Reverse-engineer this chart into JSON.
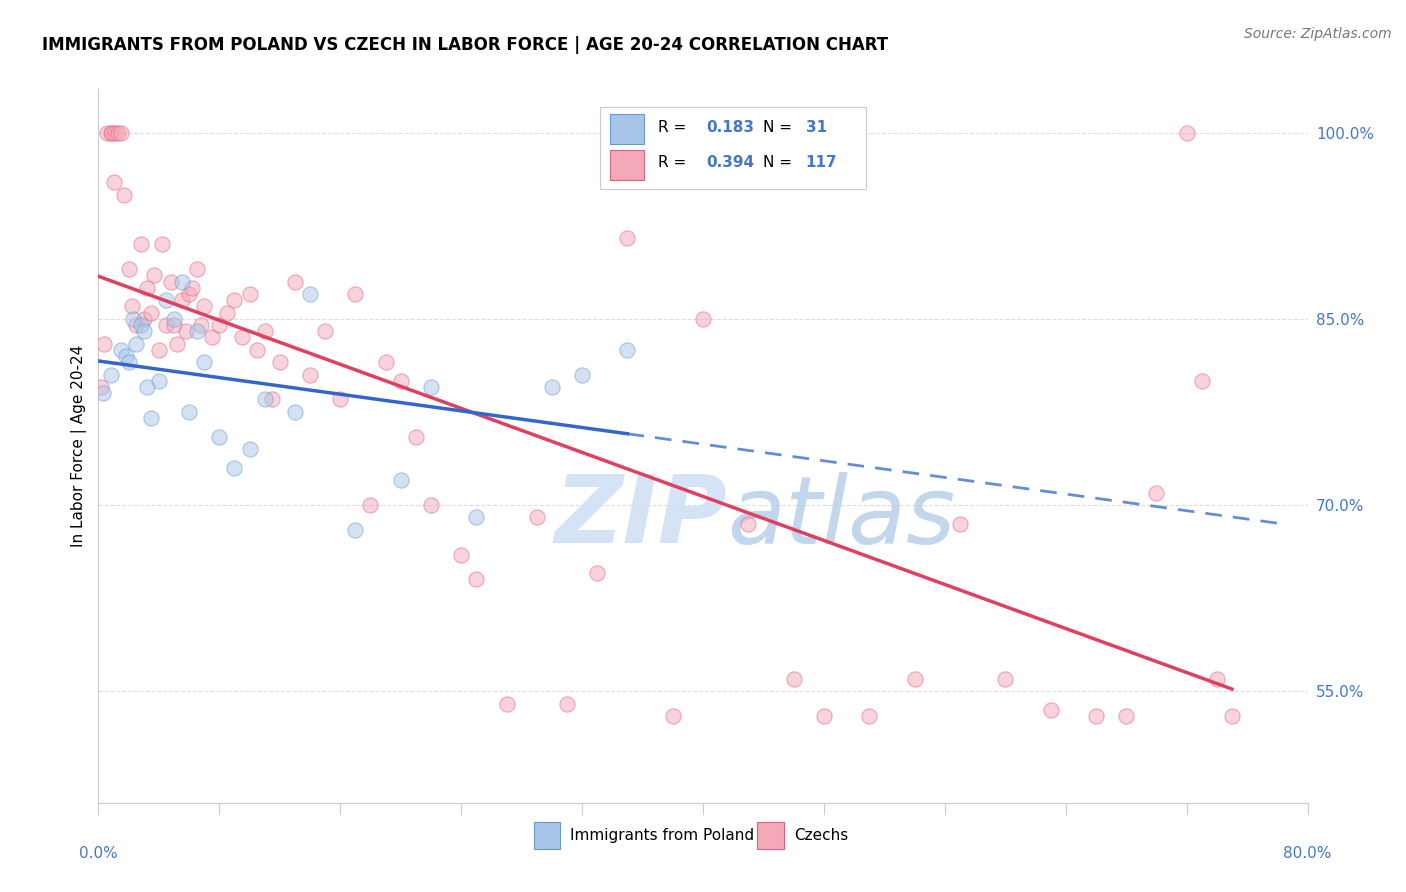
{
  "title": "IMMIGRANTS FROM POLAND VS CZECH IN LABOR FORCE | AGE 20-24 CORRELATION CHART",
  "source": "Source: ZipAtlas.com",
  "ylabel": "In Labor Force | Age 20-24",
  "yticks": [
    55.0,
    70.0,
    85.0,
    100.0
  ],
  "ytick_labels": [
    "55.0%",
    "70.0%",
    "85.0%",
    "100.0%"
  ],
  "poland_color": "#a8c4e8",
  "poland_edge": "#6699cc",
  "czech_color": "#f4a8b8",
  "czech_edge": "#e06080",
  "trend_poland_color": "#3366cc",
  "trend_czech_color": "#e04060",
  "watermark_zip_color": "#c8dff5",
  "watermark_atlas_color": "#d8e8f0",
  "background_color": "#ffffff",
  "poland_x": [
    0.3,
    0.8,
    1.5,
    1.8,
    2.0,
    2.3,
    2.5,
    2.8,
    3.0,
    3.2,
    3.5,
    4.0,
    4.5,
    5.0,
    5.5,
    6.0,
    6.5,
    7.0,
    8.0,
    9.0,
    10.0,
    11.0,
    13.0,
    14.0,
    17.0,
    20.0,
    22.0,
    25.0,
    30.0,
    32.0,
    35.0
  ],
  "poland_y": [
    79.0,
    80.5,
    82.5,
    82.0,
    81.5,
    85.0,
    83.0,
    84.5,
    84.0,
    79.5,
    77.0,
    80.0,
    86.5,
    85.0,
    88.0,
    77.5,
    84.0,
    81.5,
    75.5,
    73.0,
    74.5,
    78.5,
    77.5,
    87.0,
    68.0,
    72.0,
    79.5,
    69.0,
    79.5,
    80.5,
    82.5
  ],
  "czech_x": [
    0.2,
    0.4,
    0.6,
    0.8,
    0.9,
    1.0,
    1.1,
    1.3,
    1.5,
    1.7,
    2.0,
    2.2,
    2.5,
    2.8,
    3.0,
    3.2,
    3.5,
    3.7,
    4.0,
    4.2,
    4.5,
    4.8,
    5.0,
    5.2,
    5.5,
    5.8,
    6.0,
    6.2,
    6.5,
    6.8,
    7.0,
    7.5,
    8.0,
    8.5,
    9.0,
    9.5,
    10.0,
    10.5,
    11.0,
    11.5,
    12.0,
    13.0,
    14.0,
    15.0,
    16.0,
    17.0,
    18.0,
    19.0,
    20.0,
    21.0,
    22.0,
    24.0,
    25.0,
    27.0,
    29.0,
    31.0,
    33.0,
    35.0,
    38.0,
    40.0,
    43.0,
    46.0,
    48.0,
    51.0,
    54.0,
    57.0,
    60.0,
    63.0,
    66.0,
    68.0,
    70.0,
    72.0,
    73.0,
    74.0,
    75.0
  ],
  "czech_y": [
    79.5,
    83.0,
    100.0,
    100.0,
    100.0,
    96.0,
    100.0,
    100.0,
    100.0,
    95.0,
    89.0,
    86.0,
    84.5,
    91.0,
    85.0,
    87.5,
    85.5,
    88.5,
    82.5,
    91.0,
    84.5,
    88.0,
    84.5,
    83.0,
    86.5,
    84.0,
    87.0,
    87.5,
    89.0,
    84.5,
    86.0,
    83.5,
    84.5,
    85.5,
    86.5,
    83.5,
    87.0,
    82.5,
    84.0,
    78.5,
    81.5,
    88.0,
    80.5,
    84.0,
    78.5,
    87.0,
    70.0,
    81.5,
    80.0,
    75.5,
    70.0,
    66.0,
    64.0,
    54.0,
    69.0,
    54.0,
    64.5,
    91.5,
    53.0,
    85.0,
    68.5,
    56.0,
    53.0,
    53.0,
    56.0,
    68.5,
    56.0,
    53.5,
    53.0,
    53.0,
    71.0,
    100.0,
    80.0,
    56.0,
    53.0
  ],
  "xmin": 0.0,
  "xmax": 80.0,
  "ymin": 46.0,
  "ymax": 103.5,
  "marker_size": 120,
  "marker_alpha": 0.5,
  "trend_linewidth": 2.5,
  "grid_color": "#dddddd",
  "spine_color": "#cccccc",
  "tick_color": "#4477cc",
  "label_fontsize": 11,
  "title_fontsize": 12,
  "source_fontsize": 10
}
